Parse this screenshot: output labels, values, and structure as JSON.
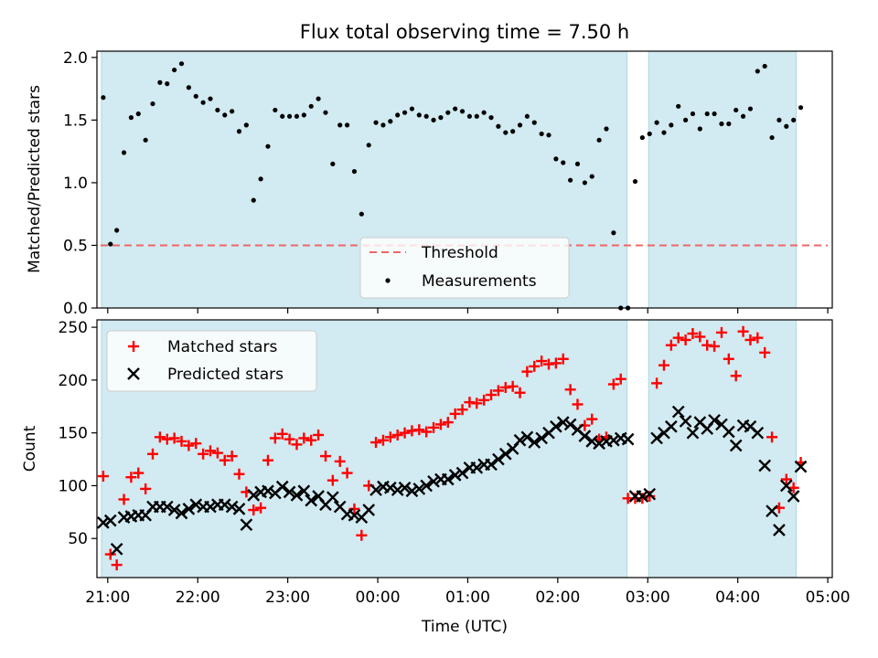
{
  "figure_title": "Flux total observing time = 7.50 h",
  "colors": {
    "shade": "#add8e6",
    "threshold": "#ee6666",
    "measurement": "#000000",
    "matched": "#ff0000",
    "predicted": "#000000"
  },
  "chart_data": [
    {
      "type": "scatter",
      "panel": "top",
      "ylabel": "Matched/Predicted stars",
      "xlim": [
        20.88,
        29.05
      ],
      "ylim": [
        0,
        2.05
      ],
      "xticks": [
        21,
        22,
        23,
        24,
        25,
        26,
        27,
        28,
        29
      ],
      "yticks": [
        0.0,
        0.5,
        1.0,
        1.5,
        2.0
      ],
      "ytick_labels": [
        "0.0",
        "0.5",
        "1.0",
        "1.5",
        "2.0"
      ],
      "shaded_intervals": [
        [
          20.93,
          26.77
        ],
        [
          27.01,
          28.65
        ]
      ],
      "threshold": {
        "name": "Threshold",
        "value": 0.5,
        "style": "dashed"
      },
      "legend": {
        "placement": "lower-center",
        "entries": [
          "Threshold",
          "Measurements"
        ]
      },
      "series": [
        {
          "name": "Measurements",
          "x": [
            20.95,
            21.03,
            21.1,
            21.18,
            21.26,
            21.34,
            21.42,
            21.5,
            21.58,
            21.66,
            21.74,
            21.82,
            21.9,
            21.98,
            22.06,
            22.14,
            22.22,
            22.3,
            22.38,
            22.46,
            22.54,
            22.62,
            22.7,
            22.78,
            22.86,
            22.94,
            23.02,
            23.1,
            23.18,
            23.26,
            23.34,
            23.42,
            23.5,
            23.58,
            23.66,
            23.74,
            23.82,
            23.9,
            23.98,
            24.06,
            24.14,
            24.22,
            24.3,
            24.38,
            24.46,
            24.54,
            24.62,
            24.7,
            24.78,
            24.86,
            24.94,
            25.02,
            25.1,
            25.18,
            25.26,
            25.34,
            25.42,
            25.5,
            25.58,
            25.66,
            25.74,
            25.82,
            25.9,
            25.98,
            26.06,
            26.14,
            26.22,
            26.3,
            26.38,
            26.46,
            26.54,
            26.62,
            26.7,
            26.78,
            26.86,
            26.94,
            27.02,
            27.1,
            27.18,
            27.26,
            27.34,
            27.42,
            27.5,
            27.58,
            27.66,
            27.74,
            27.82,
            27.9,
            27.98,
            28.06,
            28.14,
            28.22,
            28.3,
            28.38,
            28.46,
            28.54,
            28.62,
            28.7
          ],
          "y": [
            1.68,
            0.51,
            0.62,
            1.24,
            1.52,
            1.55,
            1.34,
            1.63,
            1.8,
            1.79,
            1.9,
            1.95,
            1.76,
            1.69,
            1.64,
            1.67,
            1.58,
            1.54,
            1.57,
            1.41,
            1.46,
            0.86,
            1.03,
            1.29,
            1.58,
            1.53,
            1.53,
            1.53,
            1.54,
            1.61,
            1.67,
            1.56,
            1.15,
            1.46,
            1.46,
            1.09,
            0.75,
            1.3,
            1.48,
            1.46,
            1.49,
            1.54,
            1.56,
            1.59,
            1.54,
            1.53,
            1.5,
            1.52,
            1.56,
            1.59,
            1.57,
            1.53,
            1.53,
            1.56,
            1.52,
            1.45,
            1.4,
            1.41,
            1.46,
            1.53,
            1.48,
            1.39,
            1.38,
            1.19,
            1.16,
            1.02,
            1.15,
            1.0,
            1.05,
            1.34,
            1.43,
            0.6,
            0.0,
            0.0,
            1.01,
            1.36,
            1.39,
            1.48,
            1.4,
            1.46,
            1.61,
            1.5,
            1.55,
            1.43,
            1.55,
            1.55,
            1.47,
            1.47,
            1.58,
            1.53,
            1.59,
            1.89,
            1.93,
            1.36,
            1.5,
            1.45,
            1.5,
            1.6
          ]
        }
      ]
    },
    {
      "type": "scatter",
      "panel": "bottom",
      "xlabel": "Time (UTC)",
      "ylabel": "Count",
      "xlim": [
        20.88,
        29.05
      ],
      "ylim": [
        13,
        257
      ],
      "xticks": [
        21,
        22,
        23,
        24,
        25,
        26,
        27,
        28,
        29
      ],
      "xtick_labels": [
        "21:00",
        "22:00",
        "23:00",
        "00:00",
        "01:00",
        "02:00",
        "03:00",
        "04:00",
        "05:00"
      ],
      "yticks": [
        50,
        100,
        150,
        200,
        250
      ],
      "ytick_labels": [
        "50",
        "100",
        "150",
        "200",
        "250"
      ],
      "shaded_intervals": [
        [
          20.93,
          26.77
        ],
        [
          27.01,
          28.65
        ]
      ],
      "legend": {
        "placement": "upper-left",
        "entries": [
          "Matched stars",
          "Predicted stars"
        ]
      },
      "series": [
        {
          "name": "Matched stars",
          "marker": "plus",
          "x": [
            20.95,
            21.03,
            21.1,
            21.18,
            21.26,
            21.34,
            21.42,
            21.5,
            21.58,
            21.66,
            21.74,
            21.82,
            21.9,
            21.98,
            22.06,
            22.14,
            22.22,
            22.3,
            22.38,
            22.46,
            22.54,
            22.62,
            22.7,
            22.78,
            22.86,
            22.94,
            23.02,
            23.1,
            23.18,
            23.26,
            23.34,
            23.42,
            23.5,
            23.58,
            23.66,
            23.74,
            23.82,
            23.9,
            23.98,
            24.06,
            24.14,
            24.22,
            24.3,
            24.38,
            24.46,
            24.54,
            24.62,
            24.7,
            24.78,
            24.86,
            24.94,
            25.02,
            25.1,
            25.18,
            25.26,
            25.34,
            25.42,
            25.5,
            25.58,
            25.66,
            25.74,
            25.82,
            25.9,
            25.98,
            26.06,
            26.14,
            26.22,
            26.3,
            26.38,
            26.46,
            26.54,
            26.62,
            26.7,
            26.78,
            26.86,
            26.94,
            27.02,
            27.1,
            27.18,
            27.26,
            27.34,
            27.42,
            27.5,
            27.58,
            27.66,
            27.74,
            27.82,
            27.9,
            27.98,
            28.06,
            28.14,
            28.22,
            28.3,
            28.38,
            28.46,
            28.54,
            28.62,
            28.7
          ],
          "y": [
            109,
            35,
            25,
            87,
            108,
            112,
            97,
            130,
            146,
            144,
            145,
            142,
            138,
            140,
            130,
            133,
            131,
            124,
            128,
            111,
            94,
            77,
            79,
            124,
            145,
            149,
            144,
            139,
            145,
            143,
            148,
            128,
            105,
            123,
            112,
            78,
            53,
            100,
            141,
            143,
            146,
            148,
            150,
            152,
            153,
            151,
            155,
            158,
            160,
            168,
            172,
            179,
            178,
            181,
            186,
            190,
            193,
            194,
            188,
            208,
            213,
            218,
            215,
            216,
            220,
            191,
            177,
            157,
            163,
            144,
            146,
            196,
            201,
            88,
            88,
            88,
            90,
            197,
            214,
            233,
            240,
            238,
            244,
            241,
            233,
            232,
            245,
            220,
            204,
            246,
            238,
            240,
            226,
            146,
            79,
            106,
            98,
            122
          ]
        },
        {
          "name": "Predicted stars",
          "marker": "x",
          "x": [
            20.95,
            21.03,
            21.1,
            21.18,
            21.26,
            21.34,
            21.42,
            21.5,
            21.58,
            21.66,
            21.74,
            21.82,
            21.9,
            21.98,
            22.06,
            22.14,
            22.22,
            22.3,
            22.38,
            22.46,
            22.54,
            22.62,
            22.7,
            22.78,
            22.86,
            22.94,
            23.02,
            23.1,
            23.18,
            23.26,
            23.34,
            23.42,
            23.5,
            23.58,
            23.66,
            23.74,
            23.82,
            23.9,
            23.98,
            24.06,
            24.14,
            24.22,
            24.3,
            24.38,
            24.46,
            24.54,
            24.62,
            24.7,
            24.78,
            24.86,
            24.94,
            25.02,
            25.1,
            25.18,
            25.26,
            25.34,
            25.42,
            25.5,
            25.58,
            25.66,
            25.74,
            25.82,
            25.9,
            25.98,
            26.06,
            26.14,
            26.22,
            26.3,
            26.38,
            26.46,
            26.54,
            26.62,
            26.7,
            26.78,
            26.86,
            26.94,
            27.02,
            27.1,
            27.18,
            27.26,
            27.34,
            27.42,
            27.5,
            27.58,
            27.66,
            27.74,
            27.82,
            27.9,
            27.98,
            28.06,
            28.14,
            28.22,
            28.3,
            28.38,
            28.46,
            28.54,
            28.62,
            28.7
          ],
          "y": [
            65,
            67,
            40,
            70,
            71,
            72,
            72,
            80,
            80,
            80,
            77,
            74,
            78,
            82,
            80,
            80,
            82,
            82,
            80,
            78,
            63,
            91,
            94,
            95,
            93,
            99,
            94,
            91,
            95,
            86,
            90,
            82,
            89,
            80,
            73,
            72,
            70,
            77,
            96,
            99,
            98,
            96,
            98,
            95,
            97,
            100,
            104,
            106,
            106,
            110,
            112,
            117,
            117,
            120,
            120,
            125,
            130,
            135,
            143,
            146,
            141,
            145,
            150,
            156,
            160,
            158,
            153,
            147,
            142,
            140,
            142,
            143,
            145,
            144,
            90,
            90,
            92,
            145,
            150,
            156,
            170,
            161,
            150,
            160,
            154,
            162,
            158,
            151,
            138,
            157,
            156,
            150,
            119,
            76,
            58,
            100,
            90,
            118
          ]
        }
      ]
    }
  ]
}
